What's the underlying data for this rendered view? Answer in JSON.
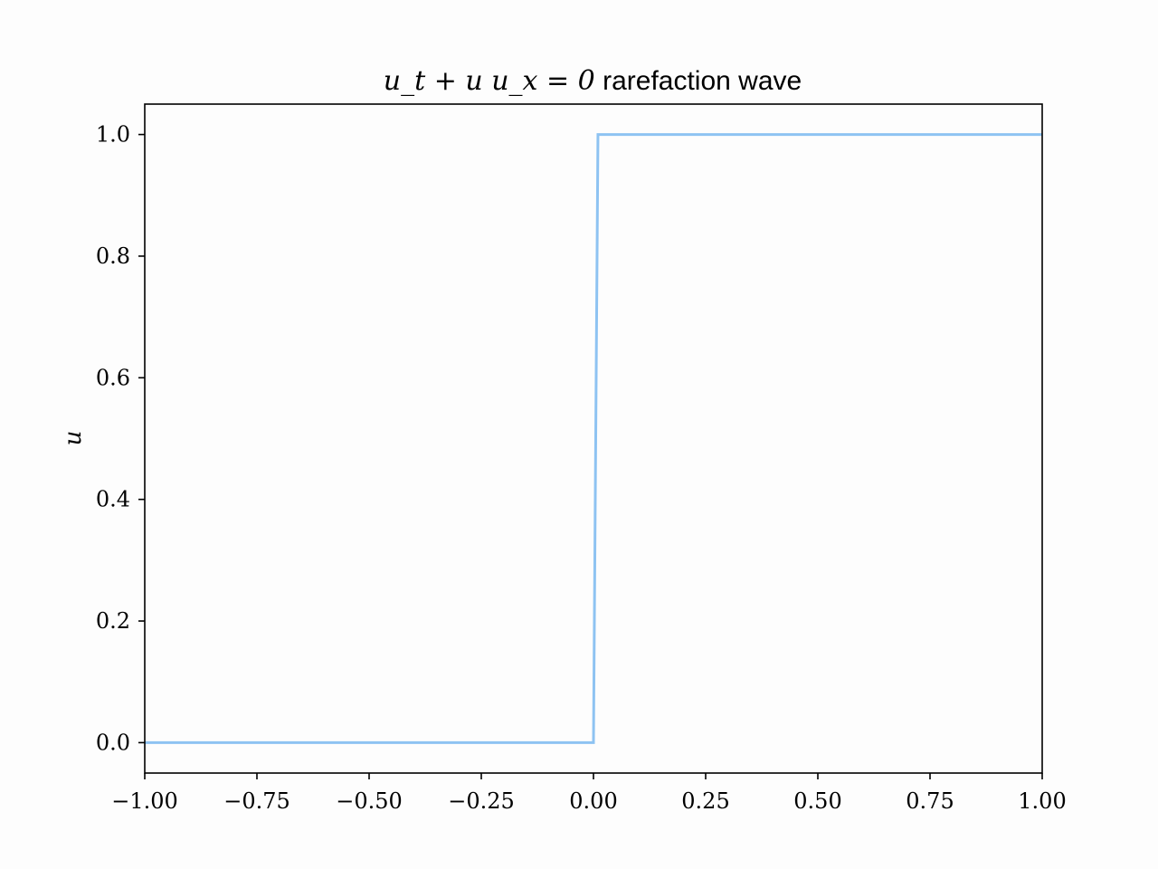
{
  "chart_data": {
    "type": "line",
    "title": {
      "math": "u_t + u u_x = 0",
      "text": " rarefaction wave"
    },
    "xlabel": "",
    "ylabel": "u",
    "xlim": [
      -1.0,
      1.0
    ],
    "ylim": [
      -0.05,
      1.05
    ],
    "xticks": [
      -1.0,
      -0.75,
      -0.5,
      -0.25,
      0.0,
      0.25,
      0.5,
      0.75,
      1.0
    ],
    "xtick_labels": [
      "−1.00",
      "−0.75",
      "−0.50",
      "−0.25",
      "0.00",
      "0.25",
      "0.50",
      "0.75",
      "1.00"
    ],
    "yticks": [
      0.0,
      0.2,
      0.4,
      0.6,
      0.8,
      1.0
    ],
    "ytick_labels": [
      "0.0",
      "0.2",
      "0.4",
      "0.6",
      "0.8",
      "1.0"
    ],
    "grid": false,
    "series": [
      {
        "color": "#8ec3f2",
        "x": [
          -1.0,
          0.0,
          0.01,
          1.0
        ],
        "y": [
          0.0,
          0.0,
          1.0,
          1.0
        ]
      }
    ]
  }
}
